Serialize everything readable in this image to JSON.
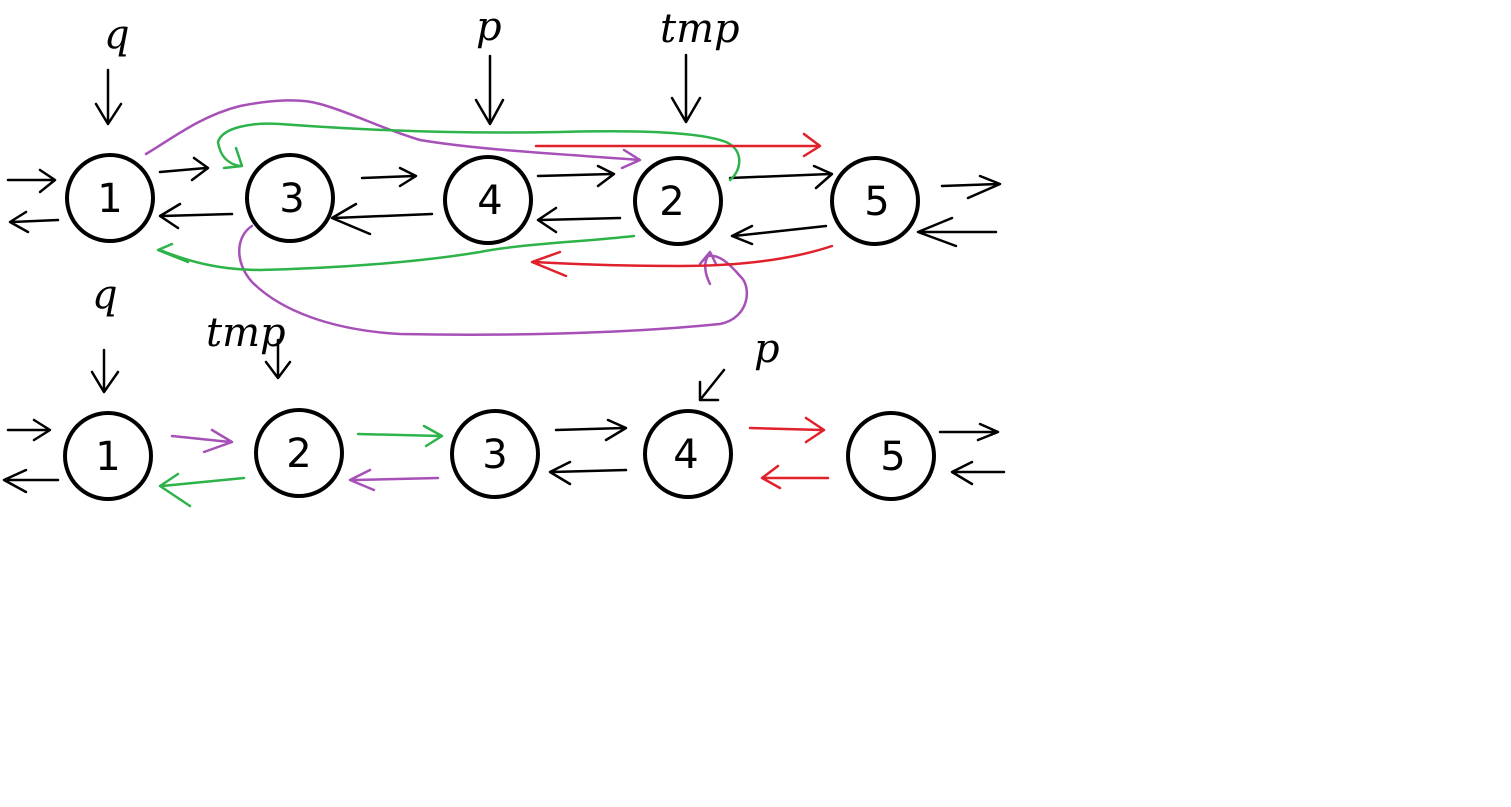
{
  "colors": {
    "background": "#ffffff",
    "ink": "#000000",
    "green": "#2db34a",
    "purple": "#a650b8",
    "red": "#e0202a"
  },
  "top_list": {
    "nodes": [
      "1",
      "3",
      "4",
      "2",
      "5"
    ],
    "pointers": {
      "q": "q",
      "p": "p",
      "tmp": "tmp"
    }
  },
  "bottom_list": {
    "nodes": [
      "1",
      "2",
      "3",
      "4",
      "5"
    ],
    "pointers": {
      "q": "q",
      "tmp": "tmp",
      "p": "p"
    }
  }
}
